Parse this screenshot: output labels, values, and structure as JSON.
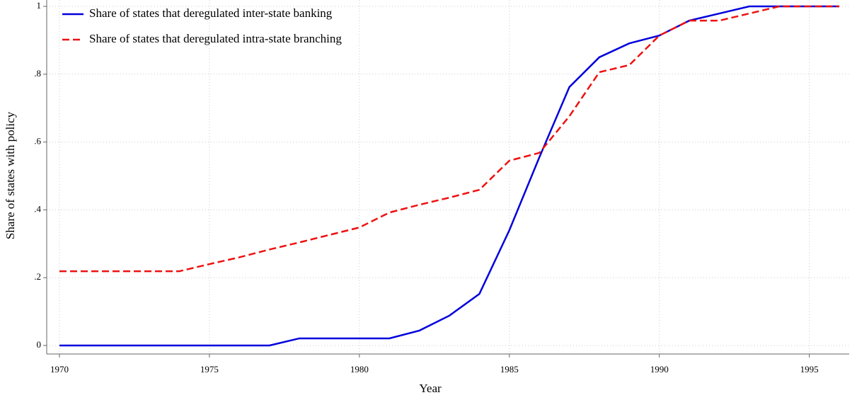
{
  "chart_data": {
    "type": "line",
    "xlabel": "Year",
    "ylabel": "Share of states with policy",
    "x": [
      1970,
      1971,
      1972,
      1973,
      1974,
      1975,
      1976,
      1977,
      1978,
      1979,
      1980,
      1981,
      1982,
      1983,
      1984,
      1985,
      1986,
      1987,
      1988,
      1989,
      1990,
      1991,
      1992,
      1993,
      1994,
      1995,
      1996
    ],
    "series": [
      {
        "name": "Share of states that deregulated inter-state banking",
        "color": "#0000dd",
        "line_style": "solid",
        "values": [
          0,
          0,
          0,
          0,
          0,
          0,
          0,
          0,
          0.021,
          0.021,
          0.021,
          0.021,
          0.044,
          0.088,
          0.152,
          0.34,
          0.555,
          0.762,
          0.85,
          0.891,
          0.914,
          0.958,
          0.979,
          1,
          1,
          1,
          1
        ]
      },
      {
        "name": "Share of states that deregulated intra-state branching",
        "color": "#ee1111",
        "line_style": "dashed",
        "values": [
          0.219,
          0.219,
          0.219,
          0.219,
          0.219,
          0.24,
          0.26,
          0.283,
          0.304,
          0.326,
          0.348,
          0.392,
          0.415,
          0.436,
          0.459,
          0.545,
          0.568,
          0.676,
          0.806,
          0.827,
          0.914,
          0.958,
          0.958,
          0.979,
          1,
          1,
          1
        ]
      }
    ],
    "xlim": [
      1970,
      1996
    ],
    "xticks": [
      1970,
      1975,
      1980,
      1985,
      1990,
      1995
    ],
    "ylim": [
      0,
      1
    ],
    "yticks": [
      0,
      {
        "value": 0.2,
        "label": ".2"
      },
      {
        "value": 0.4,
        "label": ".4"
      },
      {
        "value": 0.6,
        "label": ".6"
      },
      {
        "value": 0.8,
        "label": ".8"
      },
      1
    ],
    "grid": true,
    "legend": "top-left"
  }
}
